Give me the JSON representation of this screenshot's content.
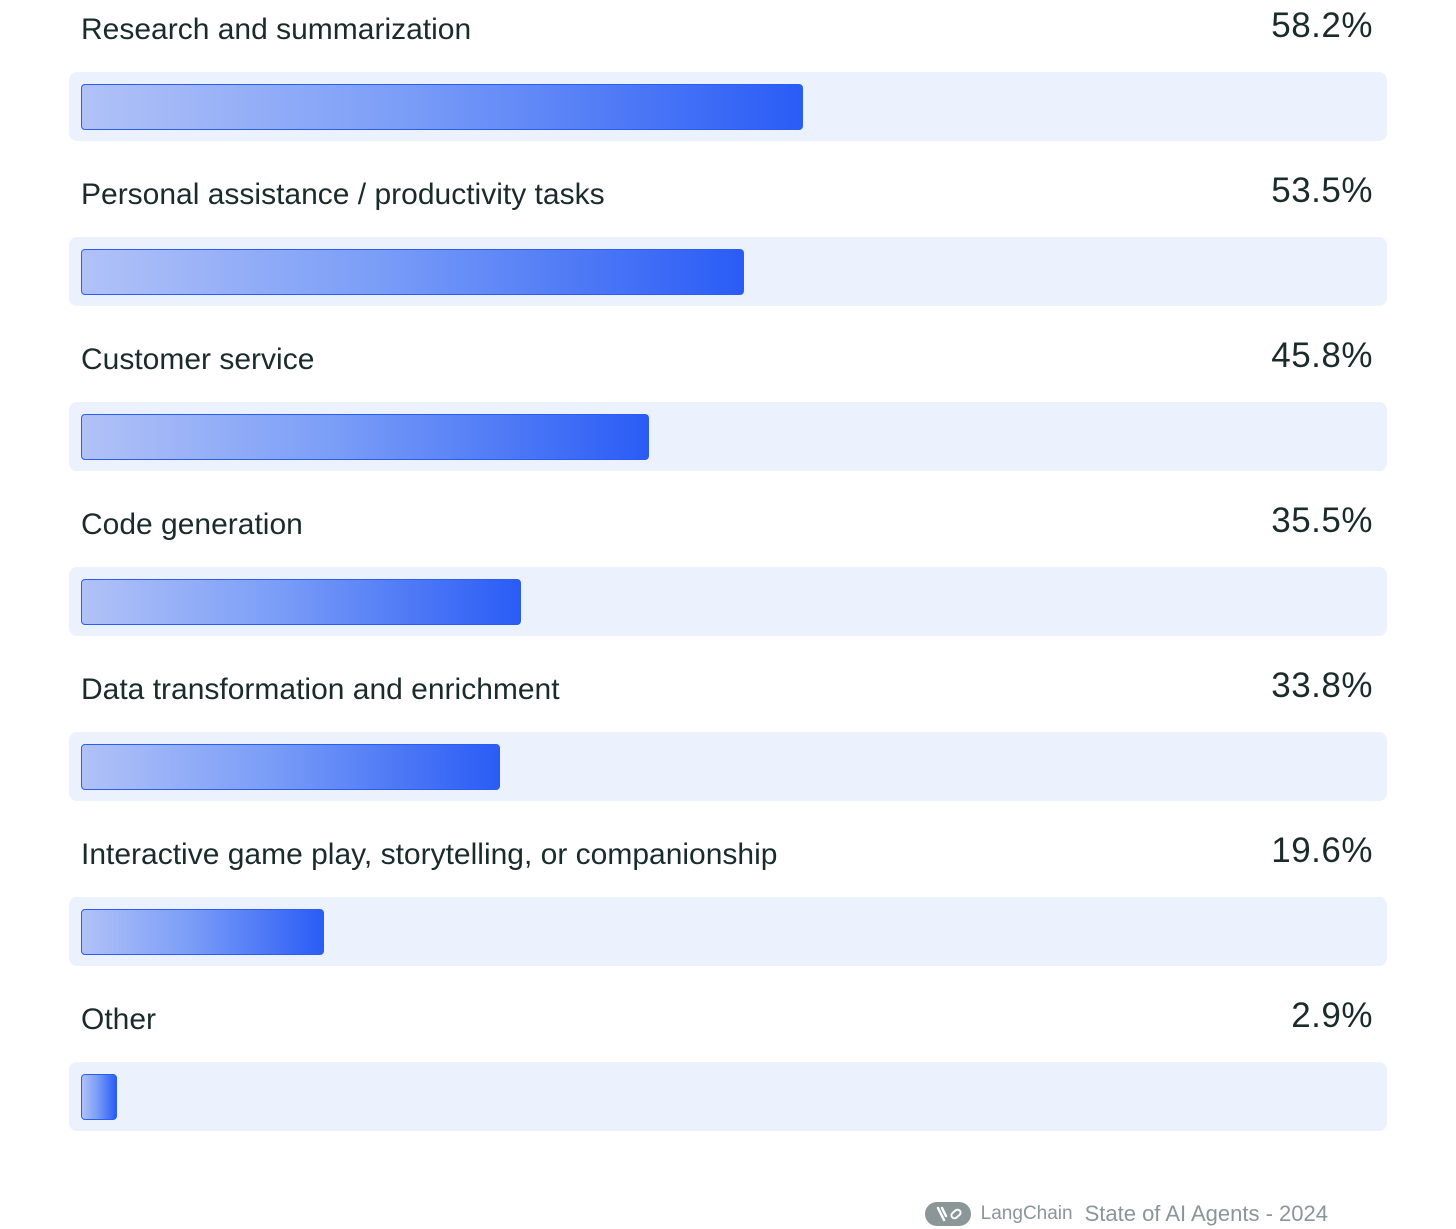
{
  "chart_data": {
    "type": "bar",
    "orientation": "horizontal",
    "categories": [
      "Research and summarization",
      "Personal assistance / productivity tasks",
      "Customer service",
      "Code generation",
      "Data transformation and enrichment",
      "Interactive game play, storytelling, or companionship",
      "Other"
    ],
    "values": [
      58.2,
      53.5,
      45.8,
      35.5,
      33.8,
      19.6,
      2.9
    ],
    "value_labels": [
      "58.2%",
      "53.5%",
      "45.8%",
      "35.5%",
      "33.8%",
      "19.6%",
      "2.9%"
    ],
    "unit": "%",
    "title": "",
    "xlabel": "",
    "ylabel": "",
    "legend": "none",
    "grid": false,
    "bar_color_start": "#b1c2f7",
    "bar_color_end": "#2a5cf6",
    "track_color": "#ebf1fd"
  },
  "footer": {
    "logo_icon": "langchain-parrot-link-icon",
    "brand": "LangChain",
    "caption": "State of AI Agents - 2024"
  }
}
